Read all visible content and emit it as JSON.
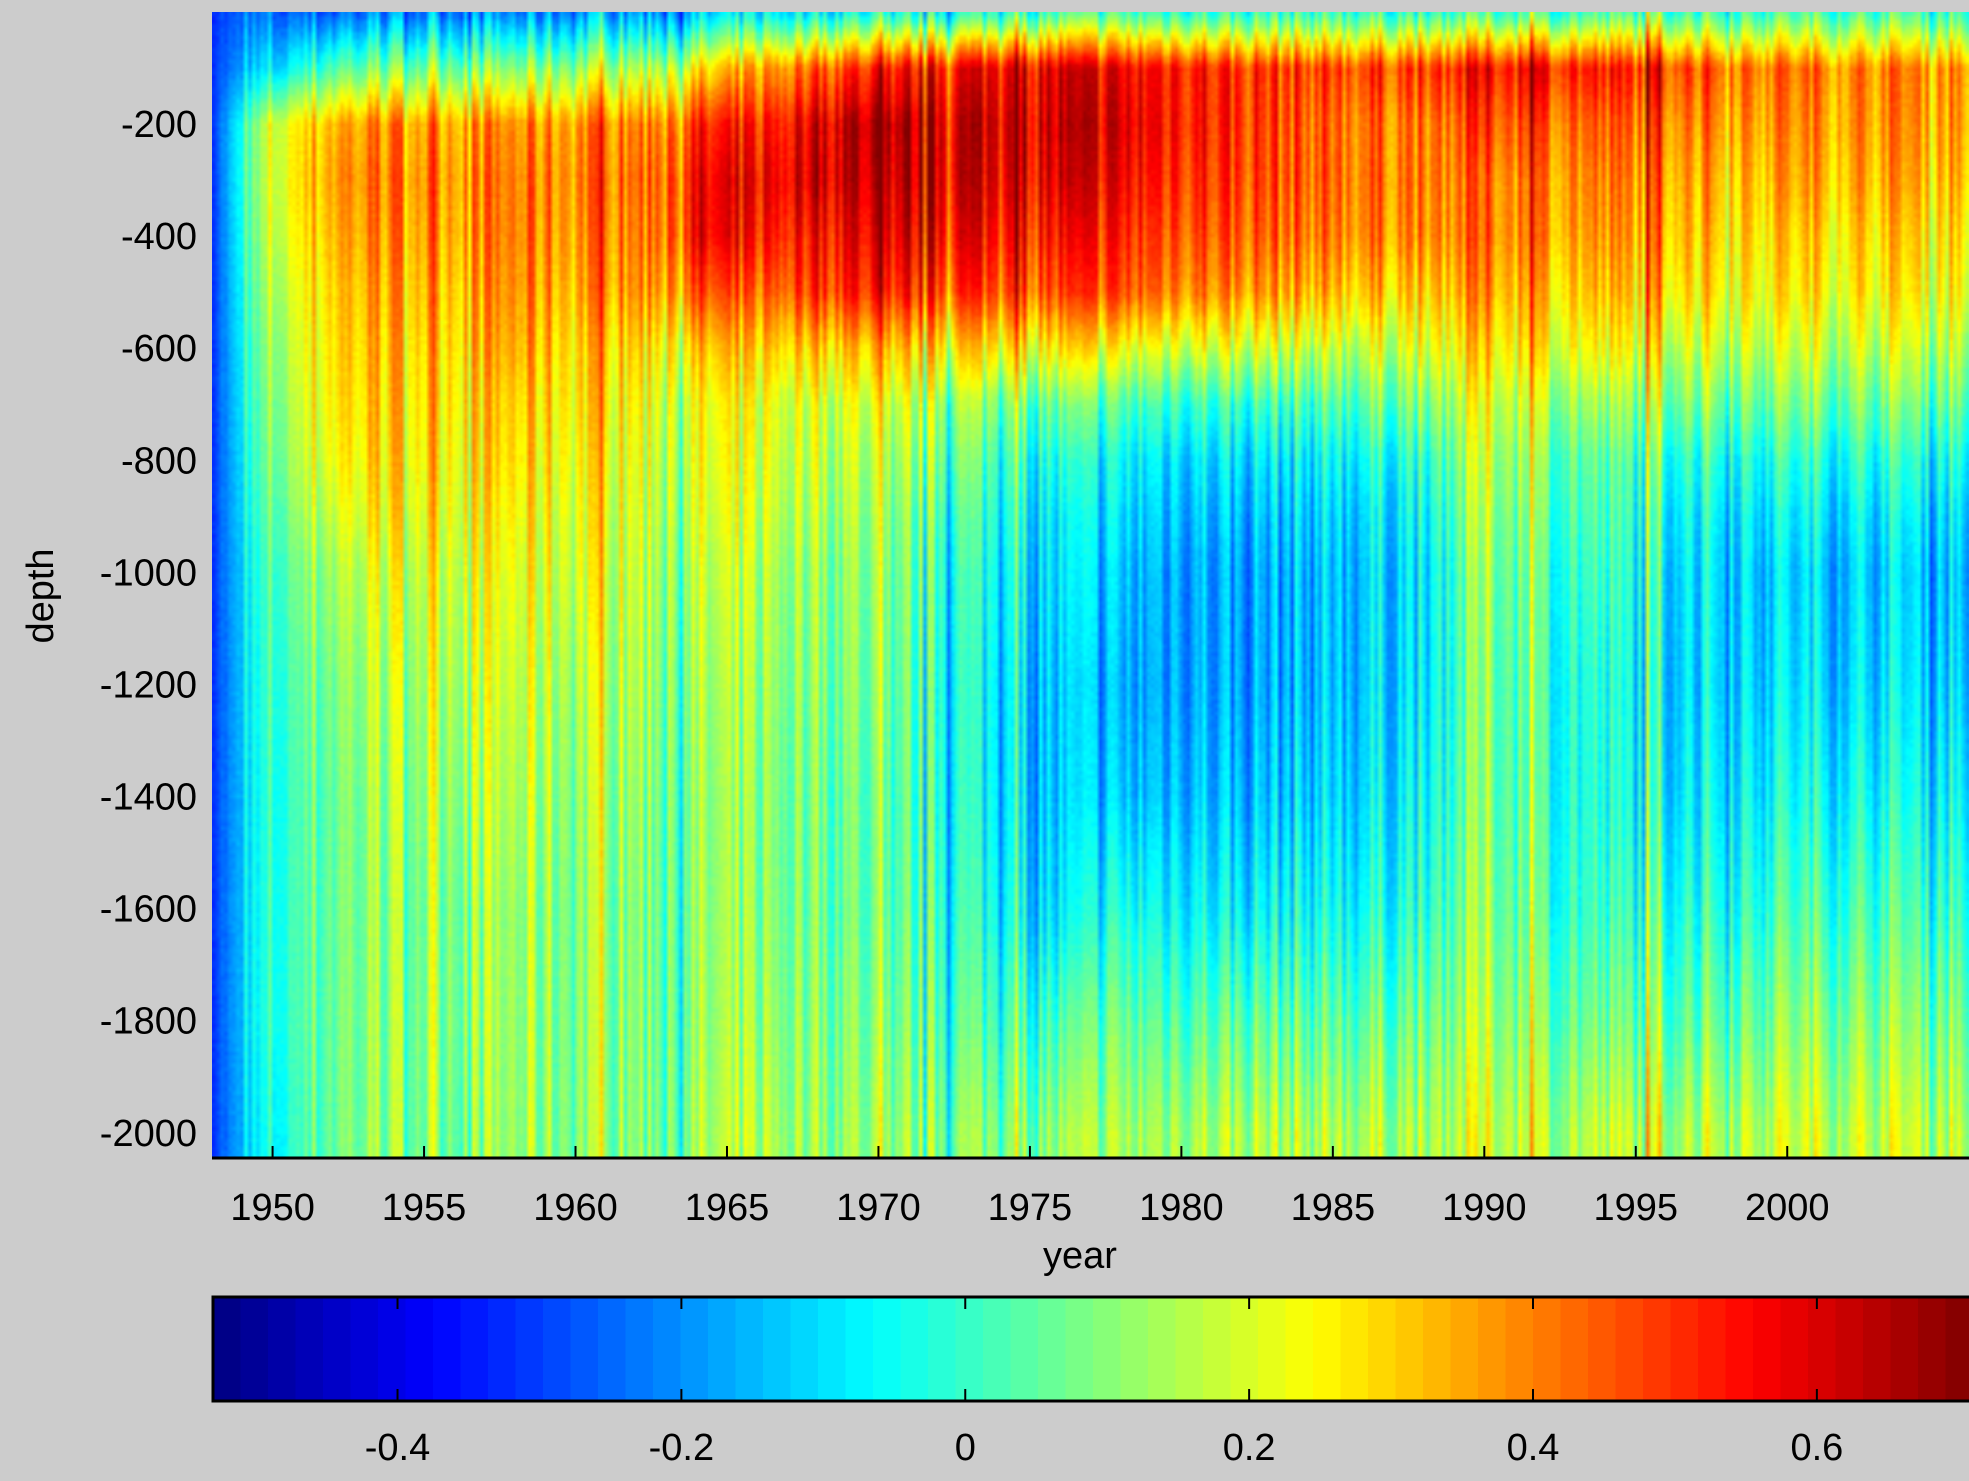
{
  "chart_data": [
    {
      "type": "heatmap",
      "title": "",
      "xlabel": "year",
      "ylabel": "depth",
      "xlim": [
        1948,
        2006
      ],
      "ylim": [
        -2045,
        0
      ],
      "xticks": [
        1950,
        1955,
        1960,
        1965,
        1970,
        1975,
        1980,
        1985,
        1990,
        1995,
        2000
      ],
      "xtick_labels": [
        "1950",
        "1955",
        "1960",
        "1965",
        "1970",
        "1975",
        "1980",
        "1985",
        "1990",
        "1995",
        "2000"
      ],
      "yticks": [
        -200,
        -400,
        -600,
        -800,
        -1000,
        -1200,
        -1400,
        -1600,
        -1800,
        -2000
      ],
      "ytick_labels": [
        "-200",
        "-400",
        "-600",
        "-800",
        "-1000",
        "-1200",
        "-1400",
        "-1600",
        "-1800",
        "-2000"
      ],
      "colormap": "jet",
      "grid": false,
      "years": [
        1948,
        1950,
        1952,
        1954,
        1956,
        1958,
        1960,
        1962,
        1964,
        1966,
        1968,
        1970,
        1972,
        1974,
        1976,
        1978,
        1980,
        1982,
        1984,
        1986,
        1988,
        1990,
        1992,
        1994,
        1996,
        1998,
        2000,
        2002,
        2004,
        2006
      ],
      "depths": [
        0,
        -100,
        -200,
        -300,
        -400,
        -500,
        -600,
        -700,
        -800,
        -900,
        -1000,
        -1200,
        -1400,
        -1600,
        -1800,
        -2000
      ],
      "values": [
        [
          -0.3,
          -0.25,
          -0.25,
          -0.22,
          -0.2,
          -0.22,
          -0.2,
          -0.18,
          -0.15,
          -0.1,
          -0.08,
          -0.05,
          -0.05,
          -0.02,
          0.0,
          0.0,
          0.0,
          -0.02,
          0.0,
          0.0,
          0.0,
          0.02,
          0.0,
          0.0,
          0.02,
          0.02,
          0.02,
          0.02,
          0.02,
          0.02
        ],
        [
          -0.3,
          -0.1,
          0.05,
          0.08,
          0.1,
          0.1,
          0.12,
          0.15,
          0.25,
          0.35,
          0.45,
          0.52,
          0.55,
          0.58,
          0.58,
          0.55,
          0.55,
          0.5,
          0.48,
          0.48,
          0.5,
          0.55,
          0.55,
          0.5,
          0.5,
          0.45,
          0.42,
          0.4,
          0.4,
          0.4
        ],
        [
          -0.3,
          0.2,
          0.35,
          0.38,
          0.38,
          0.38,
          0.38,
          0.4,
          0.5,
          0.5,
          0.6,
          0.65,
          0.62,
          0.62,
          0.6,
          0.58,
          0.55,
          0.5,
          0.45,
          0.42,
          0.42,
          0.48,
          0.45,
          0.42,
          0.42,
          0.4,
          0.38,
          0.38,
          0.38,
          0.38
        ],
        [
          -0.3,
          0.2,
          0.38,
          0.4,
          0.4,
          0.4,
          0.4,
          0.42,
          0.55,
          0.55,
          0.62,
          0.62,
          0.62,
          0.6,
          0.58,
          0.55,
          0.52,
          0.48,
          0.45,
          0.42,
          0.42,
          0.42,
          0.4,
          0.38,
          0.38,
          0.35,
          0.35,
          0.35,
          0.35,
          0.35
        ],
        [
          -0.3,
          0.18,
          0.35,
          0.38,
          0.38,
          0.4,
          0.38,
          0.4,
          0.55,
          0.52,
          0.55,
          0.58,
          0.58,
          0.55,
          0.52,
          0.5,
          0.48,
          0.45,
          0.42,
          0.4,
          0.4,
          0.42,
          0.38,
          0.35,
          0.35,
          0.32,
          0.3,
          0.3,
          0.3,
          0.3
        ],
        [
          -0.3,
          0.15,
          0.32,
          0.35,
          0.35,
          0.38,
          0.35,
          0.38,
          0.45,
          0.42,
          0.5,
          0.52,
          0.5,
          0.48,
          0.45,
          0.45,
          0.42,
          0.38,
          0.35,
          0.32,
          0.32,
          0.38,
          0.32,
          0.3,
          0.3,
          0.28,
          0.26,
          0.26,
          0.26,
          0.26
        ],
        [
          -0.3,
          0.12,
          0.3,
          0.32,
          0.32,
          0.35,
          0.3,
          0.3,
          0.3,
          0.3,
          0.32,
          0.32,
          0.3,
          0.28,
          0.25,
          0.22,
          0.22,
          0.2,
          0.18,
          0.18,
          0.22,
          0.3,
          0.25,
          0.22,
          0.2,
          0.2,
          0.18,
          0.18,
          0.18,
          0.18
        ],
        [
          -0.3,
          0.1,
          0.28,
          0.3,
          0.3,
          0.3,
          0.28,
          0.25,
          0.22,
          0.22,
          0.2,
          0.2,
          0.15,
          0.1,
          0.05,
          0.02,
          0.02,
          0.0,
          0.02,
          0.05,
          0.1,
          0.22,
          0.15,
          0.1,
          0.1,
          0.1,
          0.08,
          0.08,
          0.08,
          0.08
        ],
        [
          -0.3,
          0.08,
          0.25,
          0.28,
          0.28,
          0.28,
          0.25,
          0.22,
          0.2,
          0.2,
          0.18,
          0.15,
          0.1,
          0.02,
          -0.05,
          -0.08,
          -0.08,
          -0.1,
          -0.08,
          -0.05,
          0.0,
          0.18,
          0.08,
          0.02,
          0.0,
          0.0,
          -0.02,
          -0.02,
          -0.02,
          -0.02
        ],
        [
          -0.3,
          0.05,
          0.2,
          0.25,
          0.25,
          0.25,
          0.22,
          0.2,
          0.18,
          0.18,
          0.15,
          0.12,
          0.05,
          -0.02,
          -0.1,
          -0.12,
          -0.12,
          -0.15,
          -0.12,
          -0.1,
          -0.05,
          0.15,
          0.05,
          0.0,
          -0.05,
          -0.05,
          -0.08,
          -0.08,
          -0.08,
          -0.08
        ],
        [
          -0.3,
          0.02,
          0.15,
          0.2,
          0.22,
          0.22,
          0.2,
          0.18,
          0.15,
          0.15,
          0.12,
          0.1,
          0.02,
          -0.05,
          -0.12,
          -0.15,
          -0.15,
          -0.18,
          -0.15,
          -0.12,
          -0.08,
          0.12,
          0.02,
          -0.02,
          -0.08,
          -0.08,
          -0.12,
          -0.12,
          -0.12,
          -0.12
        ],
        [
          -0.3,
          0.0,
          0.1,
          0.15,
          0.18,
          0.18,
          0.15,
          0.15,
          0.12,
          0.12,
          0.1,
          0.08,
          0.0,
          -0.08,
          -0.15,
          -0.18,
          -0.15,
          -0.18,
          -0.15,
          -0.12,
          -0.08,
          0.1,
          0.0,
          -0.05,
          -0.1,
          -0.08,
          -0.1,
          -0.1,
          -0.1,
          -0.1
        ],
        [
          -0.3,
          -0.02,
          0.08,
          0.12,
          0.15,
          0.15,
          0.12,
          0.12,
          0.1,
          0.1,
          0.08,
          0.05,
          0.0,
          -0.08,
          -0.15,
          -0.15,
          -0.12,
          -0.15,
          -0.12,
          -0.1,
          -0.05,
          0.1,
          0.0,
          -0.05,
          -0.08,
          -0.05,
          -0.05,
          -0.05,
          -0.05,
          -0.05
        ],
        [
          -0.3,
          -0.02,
          0.08,
          0.1,
          0.12,
          0.12,
          0.1,
          0.1,
          0.1,
          0.1,
          0.08,
          0.05,
          0.02,
          -0.05,
          -0.12,
          -0.05,
          -0.05,
          -0.08,
          -0.05,
          -0.05,
          0.0,
          0.12,
          0.02,
          -0.02,
          -0.02,
          0.0,
          0.02,
          0.02,
          0.02,
          0.02
        ],
        [
          -0.3,
          -0.02,
          0.08,
          0.1,
          0.12,
          0.12,
          0.1,
          0.1,
          0.1,
          0.12,
          0.1,
          0.08,
          0.05,
          0.02,
          0.0,
          0.05,
          0.05,
          0.05,
          0.05,
          0.05,
          0.08,
          0.15,
          0.08,
          0.05,
          0.05,
          0.08,
          0.1,
          0.1,
          0.1,
          0.1
        ],
        [
          -0.3,
          -0.05,
          0.08,
          0.1,
          0.1,
          0.12,
          0.1,
          0.1,
          0.12,
          0.15,
          0.12,
          0.12,
          0.1,
          0.1,
          0.1,
          0.12,
          0.15,
          0.15,
          0.15,
          0.15,
          0.15,
          0.2,
          0.15,
          0.15,
          0.15,
          0.18,
          0.18,
          0.18,
          0.18,
          0.18
        ]
      ],
      "colorbar": {
        "orientation": "horizontal",
        "location": "bottom",
        "clim": [
          -0.53,
          0.71
        ],
        "ticks": [
          -0.4,
          -0.2,
          0,
          0.2,
          0.4,
          0.6
        ],
        "tick_labels": [
          "-0.4",
          "-0.2",
          "0",
          "0.2",
          "0.4",
          "0.6"
        ]
      }
    }
  ]
}
